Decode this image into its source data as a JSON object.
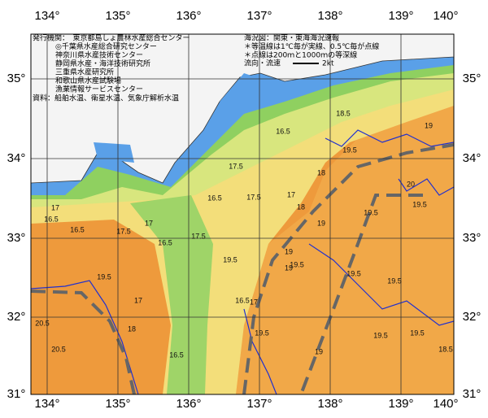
{
  "axes": {
    "longitudes": [
      "134°",
      "135°",
      "136°",
      "137°",
      "138°",
      "139°",
      "140°"
    ],
    "latitudes": [
      "35°",
      "34°",
      "33°",
      "32°",
      "31°"
    ]
  },
  "legend": {
    "publisher": [
      "発行機関：　東京都島しょ農林水産総合センター",
      "◎千葉県水産総合研究センター",
      "神奈川県水産技術センター",
      "静岡県水産・海洋技術研究所",
      "三重県水産研究所",
      "和歌山県水産試験場",
      "漁業情報サービスセンター"
    ],
    "source": "資料：船舶水温、衛星水温、気象庁解析水温",
    "notes": [
      "海況図：関東・東海海況速報",
      "＊等温線は1℃毎が実線、0.5℃毎が点線",
      "＊点線は200ｍと1000ｍの等深線"
    ],
    "flow_label": "流向・流速",
    "flow_unit": "2kt"
  },
  "contour_labels": [
    "16.5",
    "17.5",
    "17.5",
    "17",
    "18",
    "18",
    "19",
    "19.5",
    "19.5",
    "19.5",
    "20",
    "18.5",
    "19",
    "16.5",
    "17",
    "16.5",
    "17.5",
    "17",
    "16.5",
    "17.5",
    "16.5",
    "16.5",
    "17",
    "19",
    "19",
    "19.5",
    "19.5",
    "19.5",
    "19.5",
    "19.5",
    "18.5",
    "19.5",
    "20.5",
    "20.5",
    "19.5",
    "18",
    "17",
    "16.5",
    "19.5",
    "19"
  ]
}
